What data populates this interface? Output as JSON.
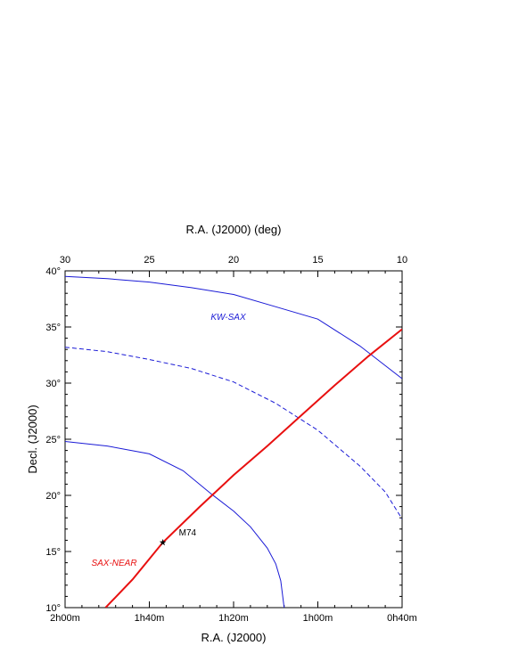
{
  "chart_data": {
    "type": "line",
    "x_title": "R.A. (J2000)",
    "x2_title": "R.A. (J2000) (deg)",
    "y_title": "Decl. (J2000)",
    "xlim": [
      30,
      10
    ],
    "xticks": [
      {
        "value": 30,
        "label": "2h00m"
      },
      {
        "value": 25,
        "label": "1h40m"
      },
      {
        "value": 20,
        "label": "1h20m"
      },
      {
        "value": 15,
        "label": "1h00m"
      },
      {
        "value": 10,
        "label": "0h40m"
      }
    ],
    "x2ticks": [
      30,
      25,
      20,
      15,
      10
    ],
    "ylim": [
      10,
      40
    ],
    "yticks": [
      {
        "value": 10,
        "label": "10°"
      },
      {
        "value": 15,
        "label": "15°"
      },
      {
        "value": 20,
        "label": "20°"
      },
      {
        "value": 25,
        "label": "25°"
      },
      {
        "value": 30,
        "label": "30°"
      },
      {
        "value": 35,
        "label": "35°"
      },
      {
        "value": 40,
        "label": "40°"
      }
    ],
    "series": [
      {
        "name": "KW-SAX",
        "color": "#1a1ad6",
        "dashed": false,
        "width": 1,
        "x": [
          30,
          27.5,
          25,
          22.5,
          20,
          17.5,
          15,
          12.5,
          10
        ],
        "values": [
          39.5,
          39.3,
          39.0,
          38.5,
          37.9,
          36.8,
          35.7,
          33.3,
          30.4
        ]
      },
      {
        "color": "#1a1ad6",
        "dashed": true,
        "width": 1,
        "x": [
          30,
          27.5,
          25,
          22.5,
          20,
          17.5,
          15,
          12.5,
          11,
          10
        ],
        "values": [
          33.2,
          32.8,
          32.1,
          31.3,
          30.1,
          28.2,
          25.8,
          22.6,
          20.3,
          17.9
        ]
      },
      {
        "color": "#1a1ad6",
        "dashed": false,
        "width": 1,
        "x": [
          30,
          27.5,
          25,
          23,
          21.3,
          20,
          19,
          18,
          17.5,
          17.2,
          17.0
        ],
        "values": [
          24.8,
          24.4,
          23.7,
          22.2,
          20.1,
          18.6,
          17.2,
          15.3,
          13.9,
          12.4,
          10.0
        ]
      },
      {
        "name": "SAX-NEAR",
        "color": "#e81010",
        "dashed": false,
        "width": 2,
        "x": [
          27.6,
          26,
          24.2,
          22,
          20,
          18,
          16,
          14,
          12,
          10
        ],
        "values": [
          10,
          12.5,
          15.8,
          19.0,
          21.8,
          24.4,
          27.1,
          29.8,
          32.4,
          34.8
        ]
      }
    ],
    "points": [
      {
        "label": "M74",
        "x": 24.2,
        "y": 15.8
      }
    ]
  }
}
